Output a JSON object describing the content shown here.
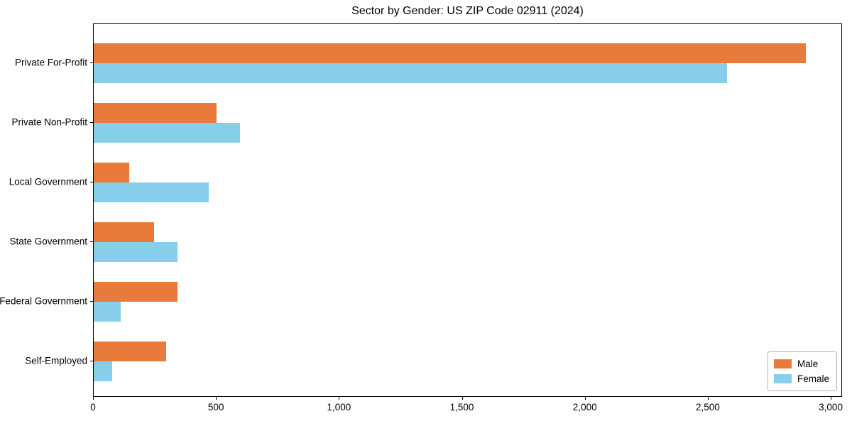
{
  "chart_data": {
    "type": "bar",
    "orientation": "horizontal",
    "title": "Sector by Gender: US ZIP Code 02911 (2024)",
    "categories": [
      "Private For-Profit",
      "Private Non-Profit",
      "Local Government",
      "State Government",
      "Federal Government",
      "Self-Employed"
    ],
    "series": [
      {
        "name": "Male",
        "color": "#E87A3C",
        "values": [
          2900,
          500,
          145,
          245,
          340,
          295
        ]
      },
      {
        "name": "Female",
        "color": "#87CEEB",
        "values": [
          2580,
          595,
          470,
          340,
          110,
          75
        ]
      }
    ],
    "xlabel": "",
    "ylabel": "",
    "xlim": [
      0,
      3046
    ],
    "xticks": [
      {
        "value": 0,
        "label": "0"
      },
      {
        "value": 500,
        "label": "500"
      },
      {
        "value": 1000,
        "label": "1,000"
      },
      {
        "value": 1500,
        "label": "1,500"
      },
      {
        "value": 2000,
        "label": "2,000"
      },
      {
        "value": 2500,
        "label": "2,500"
      },
      {
        "value": 3000,
        "label": "3,000"
      }
    ],
    "legend": {
      "position": "lower right",
      "entries": [
        "Male",
        "Female"
      ]
    },
    "grid": false,
    "axis_color": "#000000",
    "background_color": "#ffffff"
  }
}
